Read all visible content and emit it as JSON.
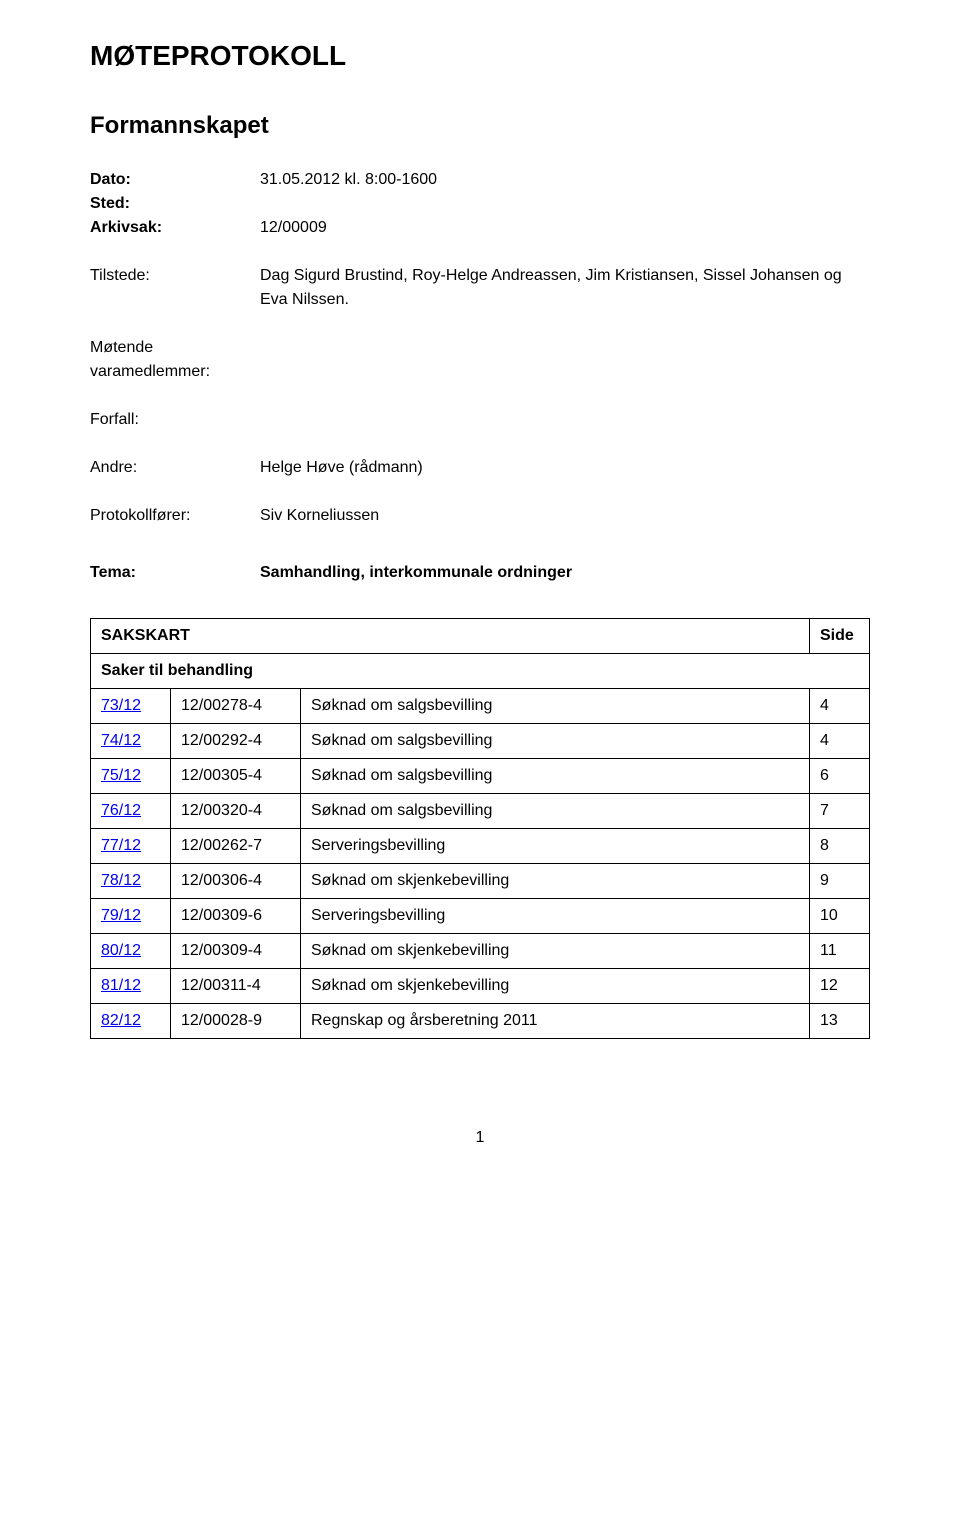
{
  "title": "MØTEPROTOKOLL",
  "subtitle": "Formannskapet",
  "meta": {
    "dato_label": "Dato:",
    "dato_value": "31.05.2012 kl. 8:00-1600",
    "sted_label": "Sted:",
    "sted_value": "",
    "arkivsak_label": "Arkivsak:",
    "arkivsak_value": "12/00009",
    "tilstede_label": "Tilstede:",
    "tilstede_value": "Dag Sigurd Brustind, Roy-Helge Andreassen, Jim Kristiansen, Sissel Johansen og Eva Nilssen.",
    "motende_label1": "Møtende",
    "motende_label2": "varamedlemmer:",
    "motende_value": "",
    "forfall_label": "Forfall:",
    "forfall_value": "",
    "andre_label": "Andre:",
    "andre_value": "Helge Høve (rådmann)",
    "protokoll_label": "Protokollfører:",
    "protokoll_value": "Siv Korneliussen"
  },
  "tema": {
    "label": "Tema:",
    "value": "Samhandling, interkommunale ordninger"
  },
  "table": {
    "header_sakskart": "SAKSKART",
    "header_side": "Side",
    "section_heading": "Saker til behandling",
    "rows": [
      {
        "num": "73/12",
        "arkiv": "12/00278-4",
        "title": "Søknad om salgsbevilling",
        "side": "4"
      },
      {
        "num": "74/12",
        "arkiv": "12/00292-4",
        "title": "Søknad om salgsbevilling",
        "side": "4"
      },
      {
        "num": "75/12",
        "arkiv": "12/00305-4",
        "title": "Søknad om salgsbevilling",
        "side": "6"
      },
      {
        "num": "76/12",
        "arkiv": "12/00320-4",
        "title": "Søknad om salgsbevilling",
        "side": "7"
      },
      {
        "num": "77/12",
        "arkiv": "12/00262-7",
        "title": "Serveringsbevilling",
        "side": "8"
      },
      {
        "num": "78/12",
        "arkiv": "12/00306-4",
        "title": "Søknad om skjenkebevilling",
        "side": "9"
      },
      {
        "num": "79/12",
        "arkiv": "12/00309-6",
        "title": "Serveringsbevilling",
        "side": "10"
      },
      {
        "num": "80/12",
        "arkiv": "12/00309-4",
        "title": "Søknad om skjenkebevilling",
        "side": "11"
      },
      {
        "num": "81/12",
        "arkiv": "12/00311-4",
        "title": "Søknad om skjenkebevilling",
        "side": "12"
      },
      {
        "num": "82/12",
        "arkiv": "12/00028-9",
        "title": "Regnskap og årsberetning 2011",
        "side": "13"
      }
    ]
  },
  "page_number": "1"
}
